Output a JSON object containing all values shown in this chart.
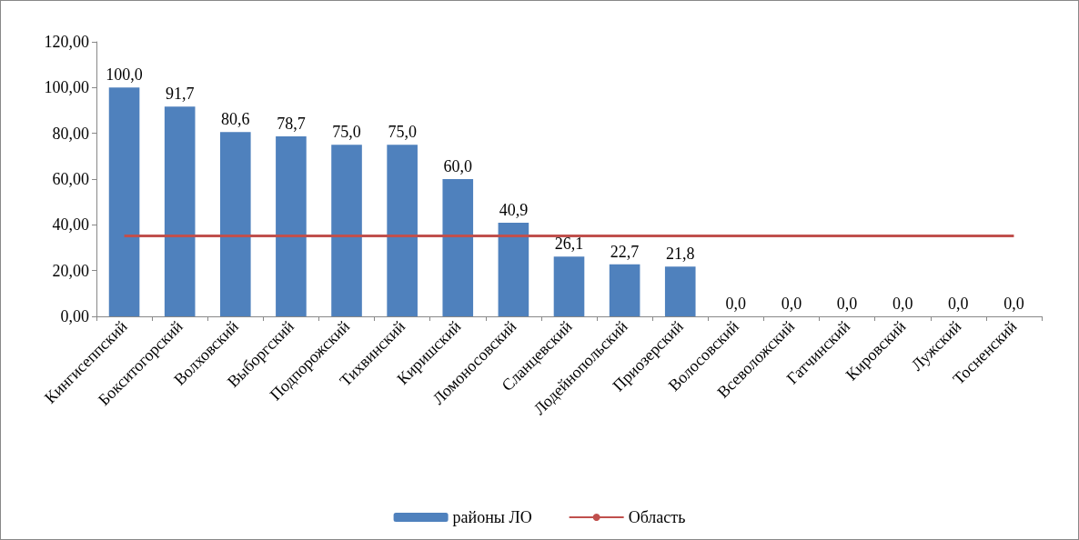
{
  "chart_data": {
    "type": "bar",
    "categories": [
      "Кингисеппский",
      "Бокситогорский",
      "Волховский",
      "Выборгский",
      "Подпорожский",
      "Тихвинский",
      "Киришский",
      "Ломоносовский",
      "Сланцевский",
      "Лодейнопольский",
      "Приозерский",
      "Волосовский",
      "Всеволожский",
      "Гатчинский",
      "Кировский",
      "Лужский",
      "Тосненский"
    ],
    "series": [
      {
        "name": "районы ЛО",
        "color": "#4f81bd",
        "values": [
          100.0,
          91.7,
          80.6,
          78.7,
          75.0,
          75.0,
          60.0,
          40.9,
          26.1,
          22.7,
          21.8,
          0.0,
          0.0,
          0.0,
          0.0,
          0.0,
          0.0
        ],
        "value_labels": [
          "100,0",
          "91,7",
          "80,6",
          "78,7",
          "75,0",
          "75,0",
          "60,0",
          "40,9",
          "26,1",
          "22,7",
          "21,8",
          "0,0",
          "0,0",
          "0,0",
          "0,0",
          "0,0",
          "0,0"
        ]
      },
      {
        "name": "Область",
        "type": "line",
        "color": "#c0504d",
        "values": [
          35.2,
          35.2,
          35.2,
          35.2,
          35.2,
          35.2,
          35.2,
          35.2,
          35.2,
          35.2,
          35.2,
          35.2,
          35.2,
          35.2,
          35.2,
          35.2,
          35.2
        ]
      }
    ],
    "ylim": [
      0,
      120
    ],
    "yticks": [
      {
        "value": 0,
        "label": "0,00"
      },
      {
        "value": 20,
        "label": "20,00"
      },
      {
        "value": 40,
        "label": "40,00"
      },
      {
        "value": 60,
        "label": "60,00"
      },
      {
        "value": 80,
        "label": "80,00"
      },
      {
        "value": 100,
        "label": "100,00"
      },
      {
        "value": 120,
        "label": "120,00"
      }
    ],
    "grid": false,
    "legend": "bottom",
    "marker": "none"
  }
}
